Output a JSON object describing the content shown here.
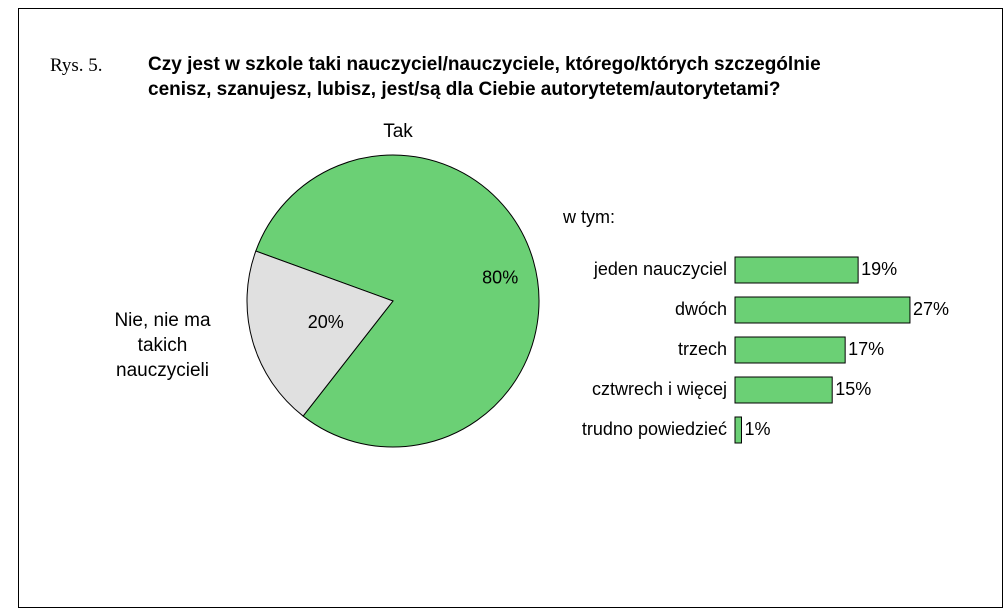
{
  "figure_label": "Rys. 5.",
  "title": "Czy jest w szkole taki nauczyciel/nauczyciele, którego/których szczególnie cenisz, szanujesz, lubisz, jest/są dla Ciebie autorytetem/autorytetami?",
  "chart_data": [
    {
      "type": "pie",
      "categories": [
        "Tak",
        "Nie, nie ma takich nauczycieli"
      ],
      "values": [
        80,
        20
      ],
      "value_labels": [
        "80%",
        "20%"
      ],
      "colors": [
        "#6bd075",
        "#e0e0e0"
      ]
    },
    {
      "type": "bar",
      "subtitle": "w tym:",
      "categories": [
        "jeden nauczyciel",
        "dwóch",
        "trzech",
        "cztwrech i więcej",
        "trudno powiedzieć"
      ],
      "values": [
        19,
        27,
        17,
        15,
        1
      ],
      "value_labels": [
        "19%",
        "27%",
        "17%",
        "15%",
        "1%"
      ],
      "color": "#6bd075"
    }
  ]
}
